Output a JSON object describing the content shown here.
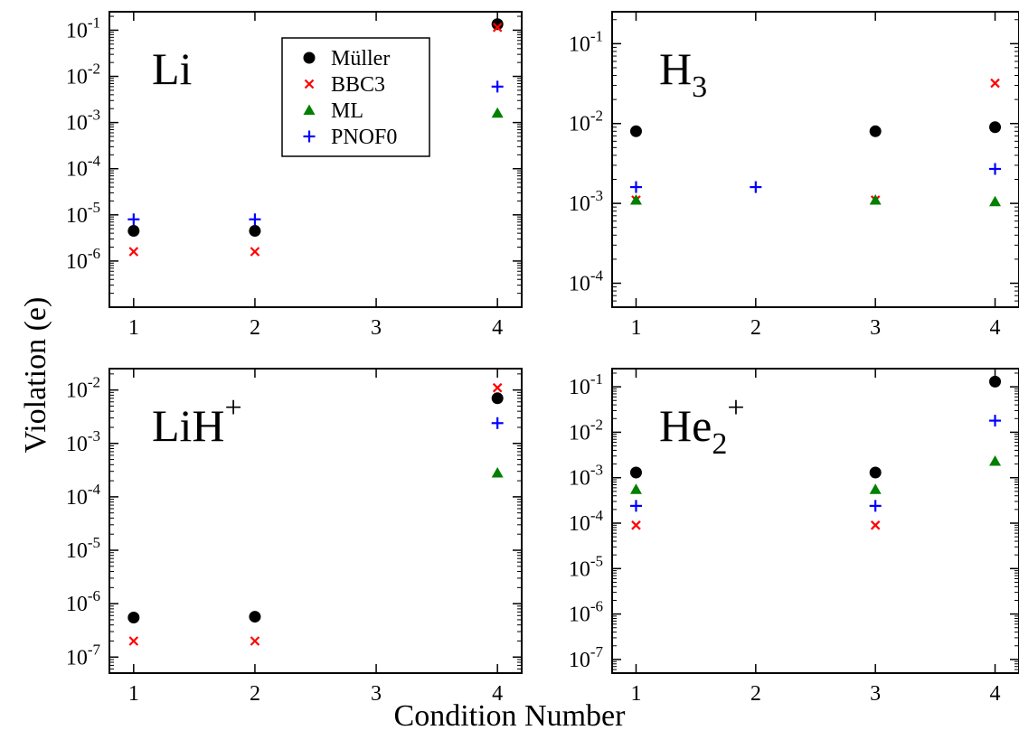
{
  "figure": {
    "xlabel": "Condition Number",
    "ylabel": "Violation (e)"
  },
  "colors": {
    "Müller": "#000000",
    "BBC3": "#ff0000",
    "ML": "#008000",
    "PNOF0": "#0000ff"
  },
  "markers": {
    "Müller": "circle",
    "BBC3": "x",
    "ML": "triangle",
    "PNOF0": "plus"
  },
  "legend": {
    "placement": "top-center of first panel",
    "entries": [
      "Müller",
      "BBC3",
      "ML",
      "PNOF0"
    ]
  },
  "chart_data": [
    {
      "type": "scatter",
      "panel_label": {
        "base": "Li",
        "sub": "",
        "sup": ""
      },
      "xlim": [
        0.8,
        4.2
      ],
      "xticks": [
        1,
        2,
        3,
        4
      ],
      "ylog": true,
      "ylim_exp": [
        -7,
        -0.6
      ],
      "yticks_exp": [
        -6,
        -5,
        -4,
        -3,
        -2,
        -1
      ],
      "series": [
        {
          "name": "Müller",
          "x": [
            1,
            2,
            4
          ],
          "y": [
            4.5e-06,
            4.5e-06,
            0.135
          ]
        },
        {
          "name": "BBC3",
          "x": [
            1,
            2,
            4
          ],
          "y": [
            1.6e-06,
            1.6e-06,
            0.115
          ]
        },
        {
          "name": "ML",
          "x": [
            4
          ],
          "y": [
            0.0016
          ]
        },
        {
          "name": "PNOF0",
          "x": [
            1,
            2,
            4
          ],
          "y": [
            8e-06,
            8e-06,
            0.006
          ]
        }
      ]
    },
    {
      "type": "scatter",
      "panel_label": {
        "base": "H",
        "sub": "3",
        "sup": ""
      },
      "xlim": [
        0.8,
        4.2
      ],
      "xticks": [
        1,
        2,
        3,
        4
      ],
      "ylog": true,
      "ylim_exp": [
        -4.3,
        -0.6
      ],
      "yticks_exp": [
        -4,
        -3,
        -2,
        -1
      ],
      "series": [
        {
          "name": "Müller",
          "x": [
            1,
            3,
            4
          ],
          "y": [
            0.008,
            0.008,
            0.009
          ]
        },
        {
          "name": "BBC3",
          "x": [
            1,
            3,
            4
          ],
          "y": [
            0.0011,
            0.0011,
            0.032
          ]
        },
        {
          "name": "ML",
          "x": [
            1,
            3,
            4
          ],
          "y": [
            0.0011,
            0.0011,
            0.00105
          ]
        },
        {
          "name": "PNOF0",
          "x": [
            1,
            2,
            4
          ],
          "y": [
            0.0016,
            0.0016,
            0.0027
          ]
        }
      ]
    },
    {
      "type": "scatter",
      "panel_label": {
        "base": "LiH",
        "sub": "",
        "sup": "+"
      },
      "xlim": [
        0.8,
        4.2
      ],
      "xticks": [
        1,
        2,
        3,
        4
      ],
      "ylog": true,
      "ylim_exp": [
        -7.3,
        -1.6
      ],
      "yticks_exp": [
        -7,
        -6,
        -5,
        -4,
        -3,
        -2
      ],
      "series": [
        {
          "name": "Müller",
          "x": [
            1,
            2,
            4
          ],
          "y": [
            5.5e-07,
            5.7e-07,
            0.007
          ]
        },
        {
          "name": "BBC3",
          "x": [
            1,
            2,
            4
          ],
          "y": [
            2e-07,
            2e-07,
            0.011
          ]
        },
        {
          "name": "ML",
          "x": [
            4
          ],
          "y": [
            0.00028
          ]
        },
        {
          "name": "PNOF0",
          "x": [
            4
          ],
          "y": [
            0.0024
          ]
        }
      ]
    },
    {
      "type": "scatter",
      "panel_label": {
        "base": "He",
        "sub": "2",
        "sup": "+"
      },
      "xlim": [
        0.8,
        4.2
      ],
      "xticks": [
        1,
        2,
        3,
        4
      ],
      "ylog": true,
      "ylim_exp": [
        -7.3,
        -0.6
      ],
      "yticks_exp": [
        -7,
        -6,
        -5,
        -4,
        -3,
        -2,
        -1
      ],
      "series": [
        {
          "name": "Müller",
          "x": [
            1,
            3,
            4
          ],
          "y": [
            0.0013,
            0.0013,
            0.13
          ]
        },
        {
          "name": "BBC3",
          "x": [
            1,
            3
          ],
          "y": [
            9e-05,
            9e-05
          ]
        },
        {
          "name": "ML",
          "x": [
            1,
            3,
            4
          ],
          "y": [
            0.00055,
            0.00055,
            0.0023
          ]
        },
        {
          "name": "PNOF0",
          "x": [
            1,
            3,
            4
          ],
          "y": [
            0.00024,
            0.00024,
            0.018
          ]
        }
      ]
    }
  ]
}
